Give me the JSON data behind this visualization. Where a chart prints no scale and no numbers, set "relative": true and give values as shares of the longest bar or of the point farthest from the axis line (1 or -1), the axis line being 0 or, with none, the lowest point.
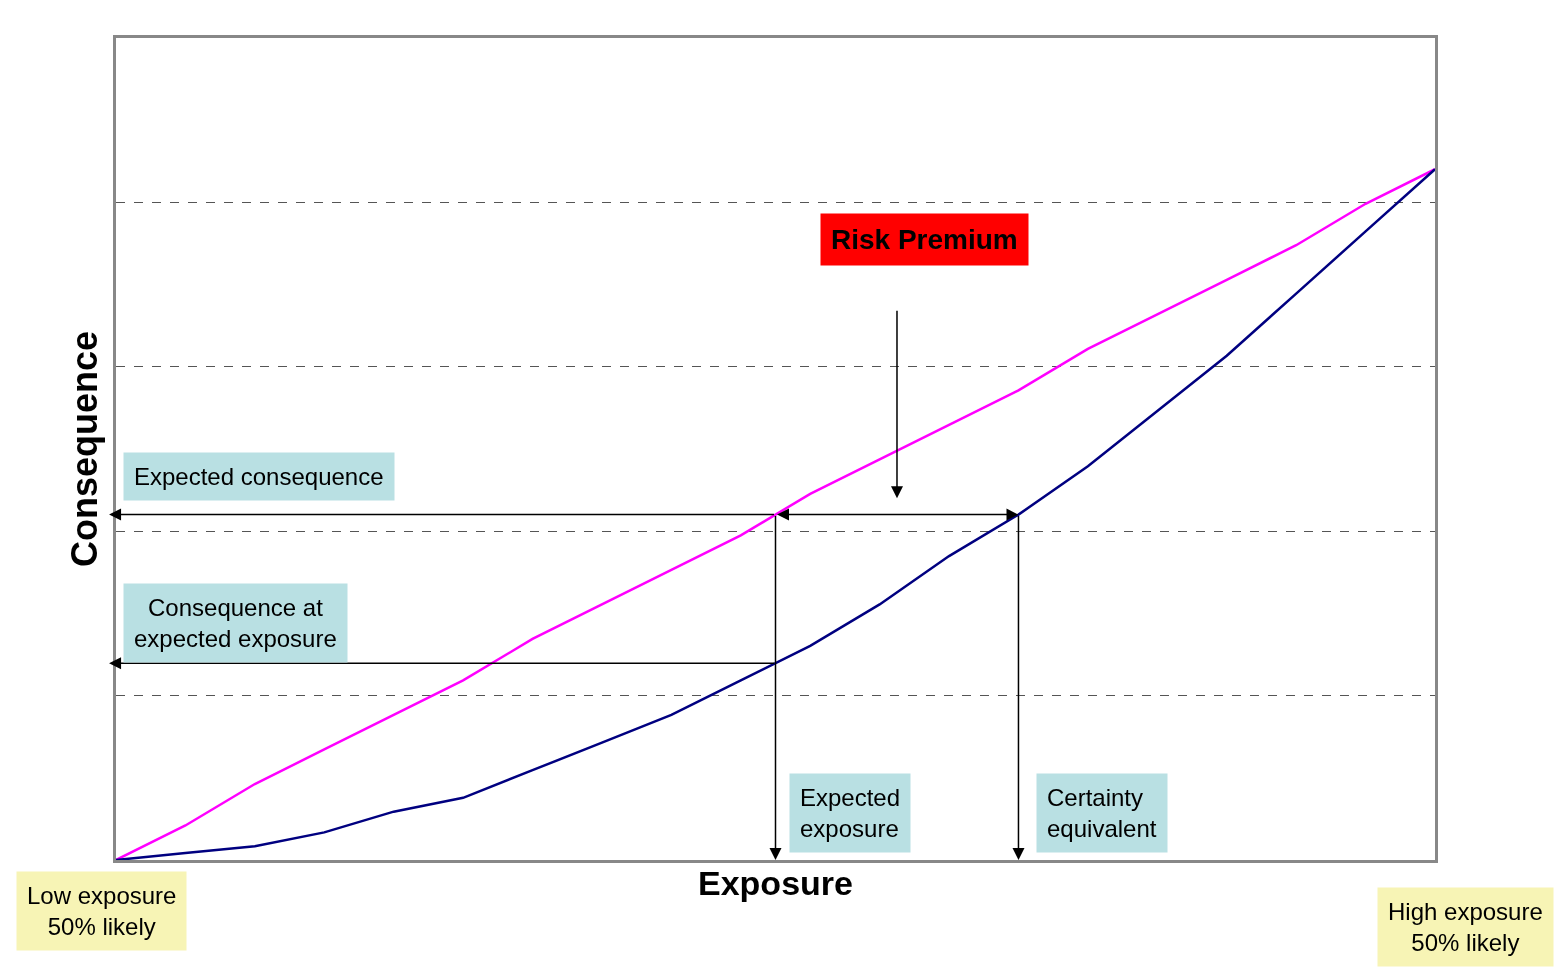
{
  "chart_data": {
    "type": "line",
    "xlabel": "Exposure",
    "ylabel": "Consequence",
    "relative": true,
    "grid": "y",
    "marker": "none",
    "line_style": "solid",
    "categories": [
      null,
      null,
      null,
      null,
      null,
      null,
      null,
      null,
      null,
      null,
      null,
      null,
      null,
      null,
      null,
      null,
      null,
      null,
      null,
      null
    ],
    "series": [
      {
        "color": "#ff00ff",
        "values": [
          0,
          0.05,
          0.11,
          0.16,
          0.21,
          0.26,
          0.32,
          0.37,
          0.42,
          0.47,
          0.53,
          0.58,
          0.63,
          0.68,
          0.74,
          0.79,
          0.84,
          0.89,
          0.95,
          1
        ]
      },
      {
        "color": "#000080",
        "values": [
          0,
          0.01,
          0.02,
          0.04,
          0.07,
          0.09,
          0.13,
          0.17,
          0.21,
          0.26,
          0.31,
          0.37,
          0.44,
          0.5,
          0.57,
          0.65,
          0.73,
          0.82,
          0.91,
          1
        ]
      }
    ],
    "annotations": [
      "Risk Premium",
      "Expected consequence",
      "Consequence at\nexpected exposure",
      "Expected\nexposure",
      "Certainty\nequivalent",
      "Low exposure\n50% likely",
      "High exposure\n50% likely"
    ]
  }
}
